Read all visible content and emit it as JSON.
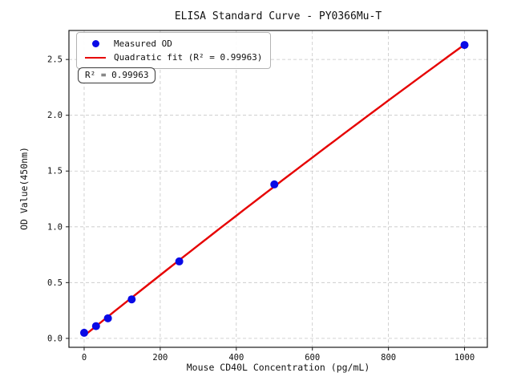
{
  "title": "ELISA Standard Curve - PY0366Mu-T",
  "chart_data": {
    "type": "scatter",
    "title": "ELISA Standard Curve - PY0366Mu-T",
    "xlabel": "Mouse CD40L Concentration (pg/mL)",
    "ylabel": "OD Value(450nm)",
    "x": [
      0,
      31.25,
      62.5,
      125,
      250,
      500,
      1000
    ],
    "y": [
      0.05,
      0.11,
      0.18,
      0.35,
      0.69,
      1.38,
      2.63
    ],
    "x_ticks": [
      0,
      200,
      400,
      600,
      800,
      1000
    ],
    "x_tick_labels": [
      "0",
      "200",
      "400",
      "600",
      "800",
      "1000"
    ],
    "y_ticks": [
      0.0,
      0.5,
      1.0,
      1.5,
      2.0,
      2.5
    ],
    "y_tick_labels": [
      "0.0",
      "0.5",
      "1.0",
      "1.5",
      "2.0",
      "2.5"
    ],
    "xlim": [
      -40,
      1060
    ],
    "ylim": [
      -0.08,
      2.76
    ],
    "grid": true,
    "grid_style": "dashed",
    "legend_position": "upper left",
    "fit": {
      "type": "quadratic",
      "r_squared": "0.99963",
      "x_range": [
        0,
        1000
      ]
    },
    "series": [
      {
        "name": "Measured OD",
        "kind": "scatter",
        "color": "#0a0ae6"
      },
      {
        "name": "Quadratic fit (R² = 0.99963)",
        "kind": "line",
        "color": "#e60000"
      }
    ]
  },
  "legend": {
    "items": [
      {
        "label": "Measured OD",
        "marker": "dot",
        "color": "#0a0ae6"
      },
      {
        "label": "Quadratic fit (R² = 0.99963)",
        "marker": "line",
        "color": "#e60000"
      }
    ]
  },
  "annotation": {
    "text": "R² = 0.99963"
  },
  "colors": {
    "point": "#0a0ae6",
    "fit_line": "#e60000",
    "grid": "#c6c6c6",
    "spine": "#1a1a1a",
    "text": "#111111",
    "background": "#ffffff"
  }
}
